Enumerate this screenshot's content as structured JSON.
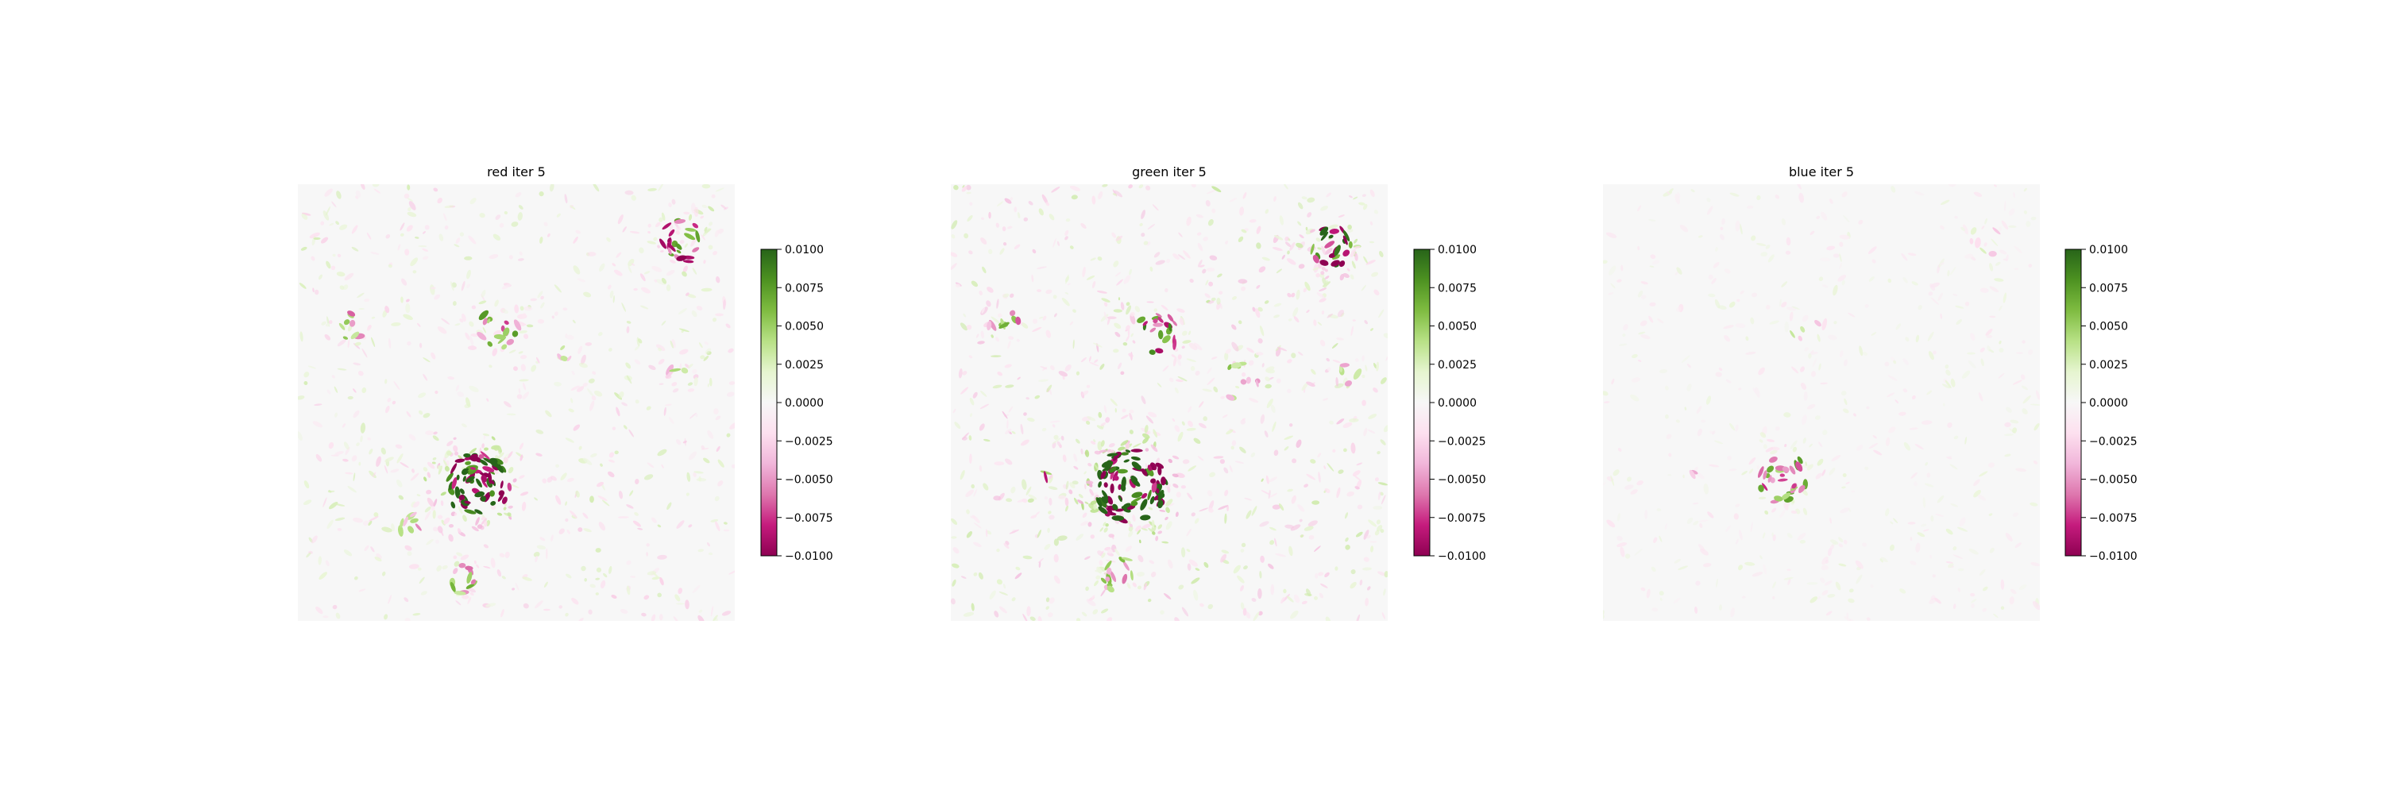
{
  "chart_data": [
    {
      "type": "heatmap",
      "title": "red iter 5",
      "axes_visible": false,
      "colormap": "PiYG",
      "vmin": -0.01,
      "vmax": 0.01,
      "colorbar_ticks": [
        0.01,
        0.0075,
        0.005,
        0.0025,
        0.0,
        -0.0025,
        -0.005,
        -0.0075,
        -0.01
      ],
      "colorbar_tick_labels": [
        "0.0100",
        "0.0075",
        "0.0050",
        "0.0025",
        "0.0000",
        "−0.0025",
        "−0.0050",
        "−0.0075",
        "−0.0100"
      ],
      "features": [
        {
          "cx": 0.41,
          "cy": 0.69,
          "radius": 0.075,
          "density": 75,
          "amplitude": 0.012
        },
        {
          "cx": 0.88,
          "cy": 0.13,
          "radius": 0.05,
          "density": 22,
          "amplitude": 0.009
        },
        {
          "cx": 0.46,
          "cy": 0.33,
          "radius": 0.05,
          "density": 16,
          "amplitude": 0.007
        },
        {
          "cx": 0.12,
          "cy": 0.32,
          "radius": 0.035,
          "density": 8,
          "amplitude": 0.006
        },
        {
          "cx": 0.27,
          "cy": 0.79,
          "radius": 0.04,
          "density": 8,
          "amplitude": 0.005
        },
        {
          "cx": 0.38,
          "cy": 0.9,
          "radius": 0.04,
          "density": 12,
          "amplitude": 0.006
        },
        {
          "cx": 0.61,
          "cy": 0.39,
          "radius": 0.03,
          "density": 4,
          "amplitude": 0.004
        },
        {
          "cx": 0.87,
          "cy": 0.44,
          "radius": 0.03,
          "density": 4,
          "amplitude": 0.004
        }
      ],
      "background_noise": {
        "count": 650,
        "amplitude": 0.003
      }
    },
    {
      "type": "heatmap",
      "title": "green iter 5",
      "axes_visible": false,
      "colormap": "PiYG",
      "vmin": -0.01,
      "vmax": 0.01,
      "colorbar_ticks": [
        0.01,
        0.0075,
        0.005,
        0.0025,
        0.0,
        -0.0025,
        -0.005,
        -0.0075,
        -0.01
      ],
      "colorbar_tick_labels": [
        "0.0100",
        "0.0075",
        "0.0050",
        "0.0025",
        "0.0000",
        "−0.0025",
        "−0.0050",
        "−0.0075",
        "−0.0100"
      ],
      "features": [
        {
          "cx": 0.41,
          "cy": 0.69,
          "radius": 0.085,
          "density": 90,
          "amplitude": 0.013
        },
        {
          "cx": 0.87,
          "cy": 0.14,
          "radius": 0.05,
          "density": 24,
          "amplitude": 0.01
        },
        {
          "cx": 0.47,
          "cy": 0.34,
          "radius": 0.05,
          "density": 20,
          "amplitude": 0.008
        },
        {
          "cx": 0.12,
          "cy": 0.32,
          "radius": 0.035,
          "density": 8,
          "amplitude": 0.006
        },
        {
          "cx": 0.38,
          "cy": 0.89,
          "radius": 0.04,
          "density": 14,
          "amplitude": 0.006
        },
        {
          "cx": 0.21,
          "cy": 0.67,
          "radius": 0.015,
          "density": 2,
          "amplitude": 0.008
        },
        {
          "cx": 0.66,
          "cy": 0.45,
          "radius": 0.05,
          "density": 10,
          "amplitude": 0.005
        },
        {
          "cx": 0.91,
          "cy": 0.43,
          "radius": 0.03,
          "density": 5,
          "amplitude": 0.004
        }
      ],
      "background_noise": {
        "count": 800,
        "amplitude": 0.0035
      }
    },
    {
      "type": "heatmap",
      "title": "blue iter 5",
      "axes_visible": false,
      "colormap": "PiYG",
      "vmin": -0.01,
      "vmax": 0.01,
      "colorbar_ticks": [
        0.01,
        0.0075,
        0.005,
        0.0025,
        0.0,
        -0.0025,
        -0.005,
        -0.0075,
        -0.01
      ],
      "colorbar_tick_labels": [
        "0.0100",
        "0.0075",
        "0.0050",
        "0.0025",
        "0.0000",
        "−0.0025",
        "−0.0050",
        "−0.0075",
        "−0.0100"
      ],
      "features": [
        {
          "cx": 0.41,
          "cy": 0.67,
          "radius": 0.06,
          "density": 30,
          "amplitude": 0.007
        },
        {
          "cx": 0.88,
          "cy": 0.13,
          "radius": 0.04,
          "density": 6,
          "amplitude": 0.003
        },
        {
          "cx": 0.47,
          "cy": 0.33,
          "radius": 0.04,
          "density": 5,
          "amplitude": 0.003
        },
        {
          "cx": 0.2,
          "cy": 0.67,
          "radius": 0.015,
          "density": 2,
          "amplitude": 0.004
        }
      ],
      "background_noise": {
        "count": 500,
        "amplitude": 0.0018
      }
    }
  ]
}
